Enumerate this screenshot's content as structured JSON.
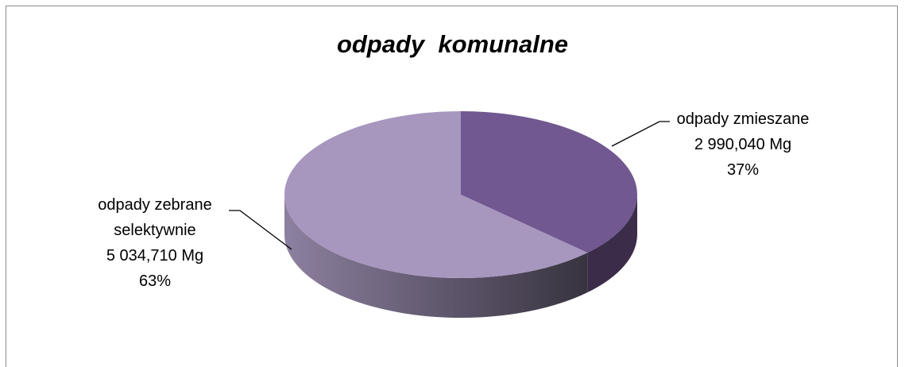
{
  "chart_data": {
    "type": "pie",
    "title": "odpady  komunalne",
    "categories": [
      "odpady zmieszane",
      "odpady zebrane selektywnie"
    ],
    "values": [
      2990.04,
      5034.71
    ],
    "value_labels": [
      "2 990,040 Mg",
      "5 034,710 Mg"
    ],
    "percentages": [
      37,
      63
    ],
    "percentage_labels": [
      "37%",
      "63%"
    ],
    "colors": [
      "#715890",
      "#a797bf"
    ]
  }
}
